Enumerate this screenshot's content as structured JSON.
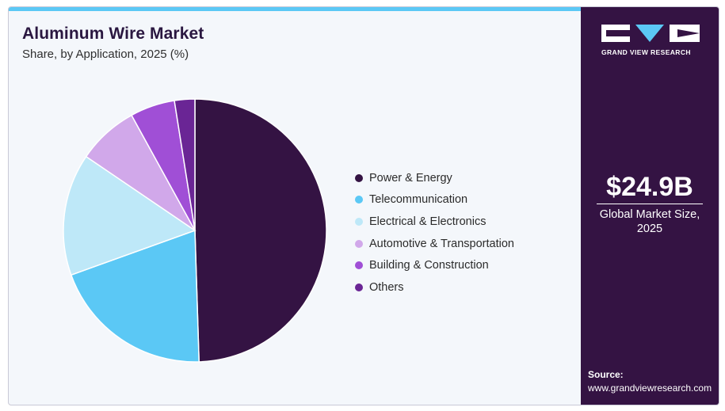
{
  "header": {
    "title": "Aluminum Wire Market",
    "subtitle": "Share, by Application, 2025 (%)"
  },
  "chart_data": {
    "type": "pie",
    "categories": [
      "Power & Energy",
      "Telecommunication",
      "Electrical & Electronics",
      "Automotive & Transportation",
      "Building & Construction",
      "Others"
    ],
    "values": [
      49.5,
      20,
      15,
      7.5,
      5.5,
      2.5
    ],
    "unit": "%",
    "colors": [
      "#341343",
      "#5bc8f5",
      "#bee8f8",
      "#d1a8ea",
      "#a04fd6",
      "#6a2595"
    ],
    "legend_position": "right"
  },
  "brand": {
    "logo_text": "GRAND VIEW RESEARCH"
  },
  "stat": {
    "value": "$24.9B",
    "label": "Global Market Size, 2025"
  },
  "source": {
    "label": "Source:",
    "url": "www.grandviewresearch.com"
  }
}
